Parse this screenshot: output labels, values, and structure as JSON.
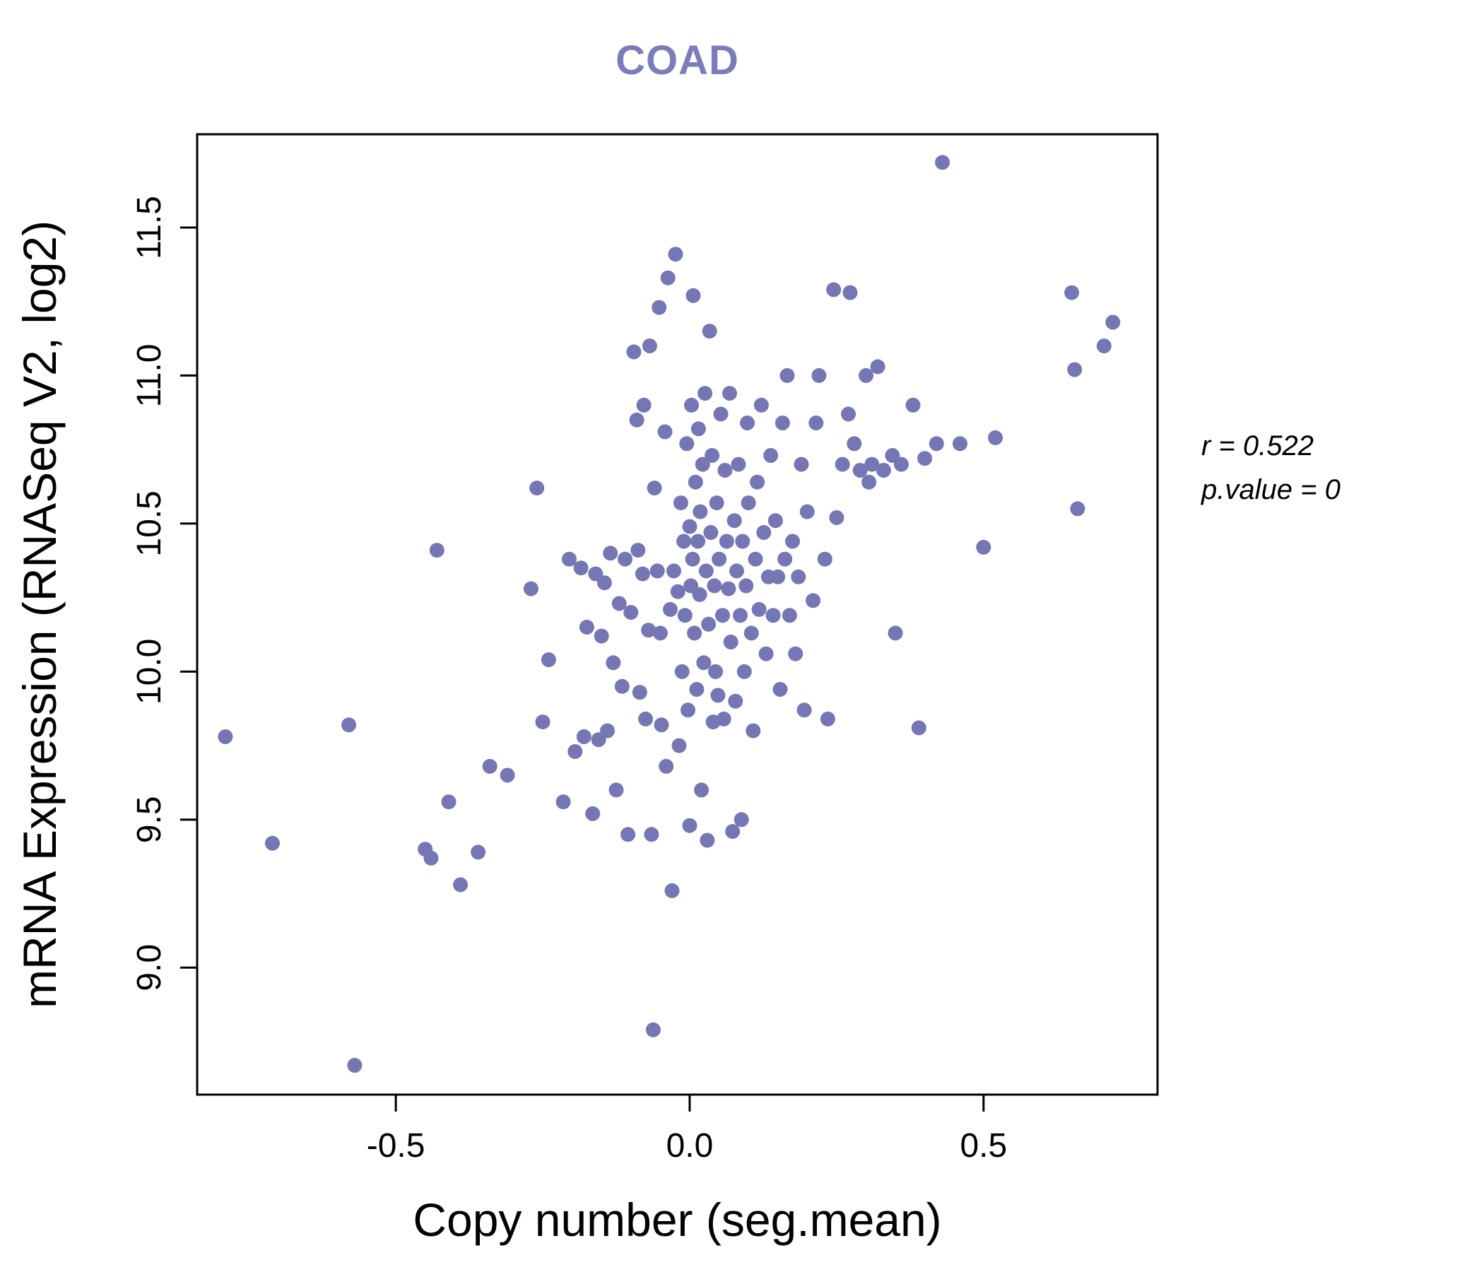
{
  "chart_data": {
    "type": "scatter",
    "title": "COAD",
    "xlabel": "Copy number (seg.mean)",
    "ylabel": "mRNA Expression (RNASeq V2, log2)",
    "xlim": [
      -0.838,
      0.796
    ],
    "ylim": [
      8.571,
      11.815
    ],
    "xticks": [
      -0.5,
      0.0,
      0.5
    ],
    "xtick_labels": [
      "-0.5",
      "0.0",
      "0.5"
    ],
    "yticks": [
      9.0,
      9.5,
      10.0,
      10.5,
      11.0,
      11.5
    ],
    "ytick_labels": [
      "9.0",
      "9.5",
      "10.0",
      "10.5",
      "11.0",
      "11.5"
    ],
    "grid": false,
    "legend": "none",
    "annotations": {
      "r_label": "r = 0.522",
      "p_label": "p.value = 0"
    },
    "point_color": "#7477b4",
    "title_color": "#7a7db9",
    "points": [
      [
        -0.79,
        9.78
      ],
      [
        -0.71,
        9.42
      ],
      [
        -0.58,
        9.82
      ],
      [
        -0.57,
        8.67
      ],
      [
        -0.45,
        9.4
      ],
      [
        -0.44,
        9.37
      ],
      [
        -0.43,
        10.41
      ],
      [
        -0.41,
        9.56
      ],
      [
        -0.39,
        9.28
      ],
      [
        -0.36,
        9.39
      ],
      [
        -0.34,
        9.68
      ],
      [
        -0.31,
        9.65
      ],
      [
        -0.27,
        10.28
      ],
      [
        -0.26,
        10.62
      ],
      [
        -0.25,
        9.83
      ],
      [
        -0.24,
        10.04
      ],
      [
        -0.215,
        9.56
      ],
      [
        -0.205,
        10.38
      ],
      [
        -0.195,
        9.73
      ],
      [
        -0.185,
        10.35
      ],
      [
        -0.18,
        9.78
      ],
      [
        -0.175,
        10.15
      ],
      [
        -0.165,
        9.52
      ],
      [
        -0.16,
        10.33
      ],
      [
        -0.155,
        9.77
      ],
      [
        -0.15,
        10.12
      ],
      [
        -0.145,
        10.3
      ],
      [
        -0.14,
        9.8
      ],
      [
        -0.135,
        10.4
      ],
      [
        -0.13,
        10.03
      ],
      [
        -0.125,
        9.6
      ],
      [
        -0.12,
        10.23
      ],
      [
        -0.115,
        9.95
      ],
      [
        -0.11,
        10.38
      ],
      [
        -0.105,
        9.45
      ],
      [
        -0.1,
        10.2
      ],
      [
        -0.095,
        11.08
      ],
      [
        -0.09,
        10.85
      ],
      [
        -0.088,
        10.41
      ],
      [
        -0.085,
        9.93
      ],
      [
        -0.08,
        10.33
      ],
      [
        -0.078,
        10.9
      ],
      [
        -0.075,
        9.84
      ],
      [
        -0.07,
        10.14
      ],
      [
        -0.068,
        11.1
      ],
      [
        -0.065,
        9.45
      ],
      [
        -0.062,
        8.79
      ],
      [
        -0.06,
        10.62
      ],
      [
        -0.055,
        10.34
      ],
      [
        -0.052,
        11.23
      ],
      [
        -0.05,
        10.13
      ],
      [
        -0.048,
        9.82
      ],
      [
        -0.042,
        10.81
      ],
      [
        -0.04,
        9.68
      ],
      [
        -0.037,
        11.33
      ],
      [
        -0.033,
        10.21
      ],
      [
        -0.03,
        9.26
      ],
      [
        -0.027,
        10.34
      ],
      [
        -0.024,
        11.41
      ],
      [
        -0.02,
        10.27
      ],
      [
        -0.018,
        9.75
      ],
      [
        -0.015,
        10.57
      ],
      [
        -0.013,
        10.0
      ],
      [
        -0.01,
        10.44
      ],
      [
        -0.008,
        10.19
      ],
      [
        -0.005,
        10.77
      ],
      [
        -0.003,
        9.87
      ],
      [
        0.0,
        10.49
      ],
      [
        0.0,
        9.48
      ],
      [
        0.002,
        10.29
      ],
      [
        0.003,
        10.9
      ],
      [
        0.005,
        10.38
      ],
      [
        0.006,
        11.27
      ],
      [
        0.008,
        10.13
      ],
      [
        0.01,
        10.64
      ],
      [
        0.012,
        9.94
      ],
      [
        0.014,
        10.44
      ],
      [
        0.015,
        10.82
      ],
      [
        0.017,
        10.26
      ],
      [
        0.018,
        10.54
      ],
      [
        0.02,
        9.6
      ],
      [
        0.022,
        10.7
      ],
      [
        0.024,
        10.03
      ],
      [
        0.026,
        10.94
      ],
      [
        0.028,
        10.34
      ],
      [
        0.03,
        9.43
      ],
      [
        0.032,
        10.16
      ],
      [
        0.034,
        11.15
      ],
      [
        0.036,
        10.47
      ],
      [
        0.038,
        10.73
      ],
      [
        0.04,
        9.83
      ],
      [
        0.042,
        10.29
      ],
      [
        0.044,
        10.0
      ],
      [
        0.046,
        10.57
      ],
      [
        0.048,
        9.92
      ],
      [
        0.05,
        10.38
      ],
      [
        0.053,
        10.87
      ],
      [
        0.056,
        10.19
      ],
      [
        0.058,
        9.84
      ],
      [
        0.06,
        10.68
      ],
      [
        0.063,
        10.44
      ],
      [
        0.066,
        10.28
      ],
      [
        0.068,
        10.94
      ],
      [
        0.07,
        10.1
      ],
      [
        0.073,
        9.46
      ],
      [
        0.076,
        10.51
      ],
      [
        0.078,
        9.9
      ],
      [
        0.08,
        10.34
      ],
      [
        0.083,
        10.7
      ],
      [
        0.086,
        10.19
      ],
      [
        0.088,
        9.5
      ],
      [
        0.09,
        10.44
      ],
      [
        0.093,
        10.0
      ],
      [
        0.096,
        10.29
      ],
      [
        0.098,
        10.84
      ],
      [
        0.1,
        10.57
      ],
      [
        0.105,
        10.13
      ],
      [
        0.108,
        9.8
      ],
      [
        0.112,
        10.38
      ],
      [
        0.115,
        10.64
      ],
      [
        0.118,
        10.21
      ],
      [
        0.122,
        10.9
      ],
      [
        0.126,
        10.47
      ],
      [
        0.13,
        10.06
      ],
      [
        0.134,
        10.32
      ],
      [
        0.138,
        10.73
      ],
      [
        0.142,
        10.19
      ],
      [
        0.146,
        10.51
      ],
      [
        0.15,
        10.32
      ],
      [
        0.154,
        9.94
      ],
      [
        0.158,
        10.84
      ],
      [
        0.162,
        10.38
      ],
      [
        0.166,
        11.0
      ],
      [
        0.17,
        10.19
      ],
      [
        0.175,
        10.44
      ],
      [
        0.18,
        10.06
      ],
      [
        0.185,
        10.32
      ],
      [
        0.19,
        10.7
      ],
      [
        0.195,
        9.87
      ],
      [
        0.2,
        10.54
      ],
      [
        0.21,
        10.24
      ],
      [
        0.215,
        10.84
      ],
      [
        0.22,
        11.0
      ],
      [
        0.23,
        10.38
      ],
      [
        0.235,
        9.84
      ],
      [
        0.245,
        11.29
      ],
      [
        0.25,
        10.52
      ],
      [
        0.26,
        10.7
      ],
      [
        0.27,
        10.87
      ],
      [
        0.273,
        11.28
      ],
      [
        0.28,
        10.77
      ],
      [
        0.29,
        10.68
      ],
      [
        0.3,
        11.0
      ],
      [
        0.305,
        10.64
      ],
      [
        0.31,
        10.7
      ],
      [
        0.32,
        11.03
      ],
      [
        0.33,
        10.68
      ],
      [
        0.345,
        10.73
      ],
      [
        0.35,
        10.13
      ],
      [
        0.36,
        10.7
      ],
      [
        0.38,
        10.9
      ],
      [
        0.39,
        9.81
      ],
      [
        0.4,
        10.72
      ],
      [
        0.42,
        10.77
      ],
      [
        0.43,
        11.72
      ],
      [
        0.46,
        10.77
      ],
      [
        0.5,
        10.42
      ],
      [
        0.52,
        10.79
      ],
      [
        0.65,
        11.28
      ],
      [
        0.655,
        11.02
      ],
      [
        0.66,
        10.55
      ],
      [
        0.705,
        11.1
      ],
      [
        0.72,
        11.18
      ]
    ]
  }
}
